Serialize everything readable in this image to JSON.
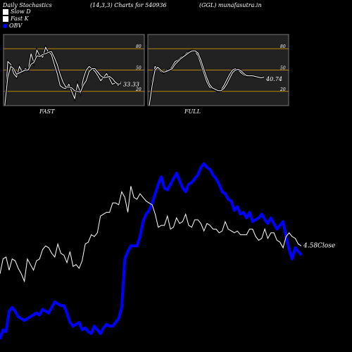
{
  "header": {
    "left": "Daily Stochastics",
    "center": "(14,3,3) Charts for 540936",
    "right": "(GGL) munafasutra.in"
  },
  "legend": [
    {
      "label": "Slow  D",
      "color": "#ffffff",
      "shape": "square"
    },
    {
      "label": "Fast K",
      "color": "#ffffff",
      "shape": "square"
    },
    {
      "label": "OBV",
      "color": "#0000ff",
      "shape": "circle"
    }
  ],
  "colors": {
    "background": "#000000",
    "panel": "#222222",
    "level_line": "#b8860b",
    "obv": "#0000ff",
    "price": "#ffffff"
  },
  "chart_data": [
    {
      "type": "line",
      "title": "FAST",
      "ylim": [
        0,
        100
      ],
      "levels": [
        20,
        50,
        80
      ],
      "tick_labels": [
        "80",
        "50",
        "20"
      ],
      "last_value_label": "33.33",
      "x": [
        0,
        1,
        2,
        3,
        4,
        5,
        6,
        7,
        8,
        9,
        10,
        11,
        12,
        13,
        14,
        15,
        16,
        17,
        18,
        19,
        20,
        21,
        22,
        23,
        24,
        25,
        26,
        27,
        28,
        29,
        30,
        31,
        32,
        33,
        34,
        35,
        36,
        37,
        38,
        39,
        40
      ],
      "series": [
        {
          "name": "Fast K",
          "values": [
            0,
            62,
            58,
            45,
            40,
            55,
            47,
            52,
            50,
            73,
            60,
            78,
            70,
            68,
            82,
            75,
            72,
            58,
            45,
            28,
            25,
            24,
            30,
            20,
            10,
            30,
            18,
            38,
            50,
            55,
            52,
            48,
            42,
            35,
            40,
            45,
            38,
            30,
            32,
            28,
            33.33
          ]
        },
        {
          "name": "Slow  D",
          "values": [
            2,
            40,
            55,
            52,
            44,
            46,
            48,
            50,
            50,
            58,
            61,
            70,
            69,
            72,
            73,
            75,
            76,
            68,
            58,
            44,
            33,
            26,
            26,
            25,
            21,
            20,
            19,
            29,
            35,
            48,
            52,
            52,
            47,
            42,
            39,
            40,
            41,
            38,
            33,
            30,
            31
          ]
        }
      ]
    },
    {
      "type": "line",
      "title": "FULL",
      "ylim": [
        0,
        100
      ],
      "levels": [
        20,
        50,
        80
      ],
      "tick_labels": [
        "80",
        "50",
        "20"
      ],
      "last_value_label": "40.74",
      "x": [
        0,
        1,
        2,
        3,
        4,
        5,
        6,
        7,
        8,
        9,
        10,
        11,
        12,
        13,
        14,
        15,
        16,
        17,
        18,
        19,
        20,
        21,
        22,
        23,
        24,
        25,
        26,
        27,
        28,
        29,
        30,
        31,
        32,
        33,
        34,
        35,
        36,
        37,
        38,
        39,
        40
      ],
      "series": [
        {
          "name": "Fast K",
          "values": [
            0,
            35,
            55,
            52,
            48,
            46,
            50,
            50,
            55,
            62,
            64,
            68,
            70,
            74,
            76,
            78,
            76,
            70,
            58,
            46,
            34,
            26,
            24,
            22,
            20,
            22,
            28,
            36,
            44,
            50,
            52,
            50,
            46,
            43,
            41,
            42,
            42,
            40,
            40,
            39,
            40.74
          ]
        },
        {
          "name": "Slow  D",
          "values": [
            0,
            28,
            50,
            54,
            50,
            47,
            48,
            50,
            52,
            58,
            62,
            66,
            69,
            72,
            75,
            77,
            77,
            74,
            64,
            52,
            40,
            30,
            25,
            23,
            21,
            21,
            24,
            30,
            38,
            46,
            50,
            51,
            49,
            45,
            42,
            42,
            42,
            41,
            40,
            39,
            40
          ]
        }
      ]
    },
    {
      "type": "line",
      "title": "",
      "close_label": "4.58Close",
      "ylim": [
        0,
        100
      ],
      "x": [
        0,
        1,
        2,
        3,
        4,
        5,
        6,
        7,
        8,
        9,
        10,
        11,
        12,
        13,
        14,
        15,
        16,
        17,
        18,
        19,
        20,
        21,
        22,
        23,
        24,
        25,
        26,
        27,
        28,
        29,
        30,
        31,
        32,
        33,
        34,
        35,
        36,
        37,
        38,
        39,
        40,
        41,
        42,
        43,
        44,
        45,
        46,
        47,
        48,
        49,
        50,
        51,
        52,
        53,
        54,
        55,
        56,
        57,
        58,
        59,
        60,
        61,
        62,
        63,
        64,
        65,
        66,
        67,
        68,
        69,
        70,
        71,
        72,
        73,
        74,
        75,
        76,
        77,
        78,
        79,
        80,
        81,
        82,
        83,
        84,
        85,
        86,
        87,
        88,
        89,
        90,
        91,
        92,
        93,
        94,
        95,
        96,
        97,
        98,
        99
      ],
      "series": [
        {
          "name": "Close",
          "values": [
            40,
            48,
            49,
            42,
            48,
            47,
            43,
            40,
            36,
            48,
            45,
            42,
            47,
            48,
            53,
            55,
            54,
            51,
            49,
            56,
            51,
            50,
            46,
            52,
            44,
            45,
            43,
            47,
            56,
            57,
            61,
            60,
            62,
            71,
            72,
            73,
            73,
            78,
            78,
            77,
            84,
            81,
            73,
            87,
            81,
            80,
            83,
            81,
            79,
            78,
            77,
            72,
            65,
            66,
            66,
            71,
            64,
            65,
            70,
            67,
            68,
            72,
            66,
            65,
            69,
            69,
            67,
            63,
            67,
            66,
            64,
            64,
            62,
            63,
            68,
            64,
            63,
            62,
            63,
            61,
            61,
            61,
            64,
            64,
            60,
            58,
            59,
            64,
            59,
            62,
            62,
            58,
            57,
            54,
            60,
            62,
            60,
            59,
            56,
            55
          ]
        },
        {
          "name": "OBV",
          "values": [
            5,
            10,
            9,
            20,
            22,
            20,
            17,
            16,
            15,
            16,
            17,
            18,
            19,
            18,
            21,
            20,
            19,
            22,
            25,
            24,
            23,
            23,
            19,
            14,
            12,
            13,
            14,
            10,
            11,
            9,
            8,
            12,
            10,
            8,
            11,
            13,
            12,
            12,
            14,
            16,
            22,
            48,
            52,
            55,
            55,
            55,
            60,
            68,
            72,
            74,
            78,
            83,
            88,
            92,
            86,
            85,
            88,
            91,
            94,
            90,
            86,
            84,
            88,
            89,
            91,
            93,
            97,
            99,
            97,
            96,
            93,
            91,
            88,
            84,
            83,
            80,
            79,
            74,
            76,
            72,
            73,
            70,
            73,
            68,
            69,
            70,
            72,
            69,
            67,
            70,
            67,
            64,
            66,
            68,
            60,
            53,
            48,
            54,
            52,
            50
          ]
        }
      ]
    }
  ]
}
